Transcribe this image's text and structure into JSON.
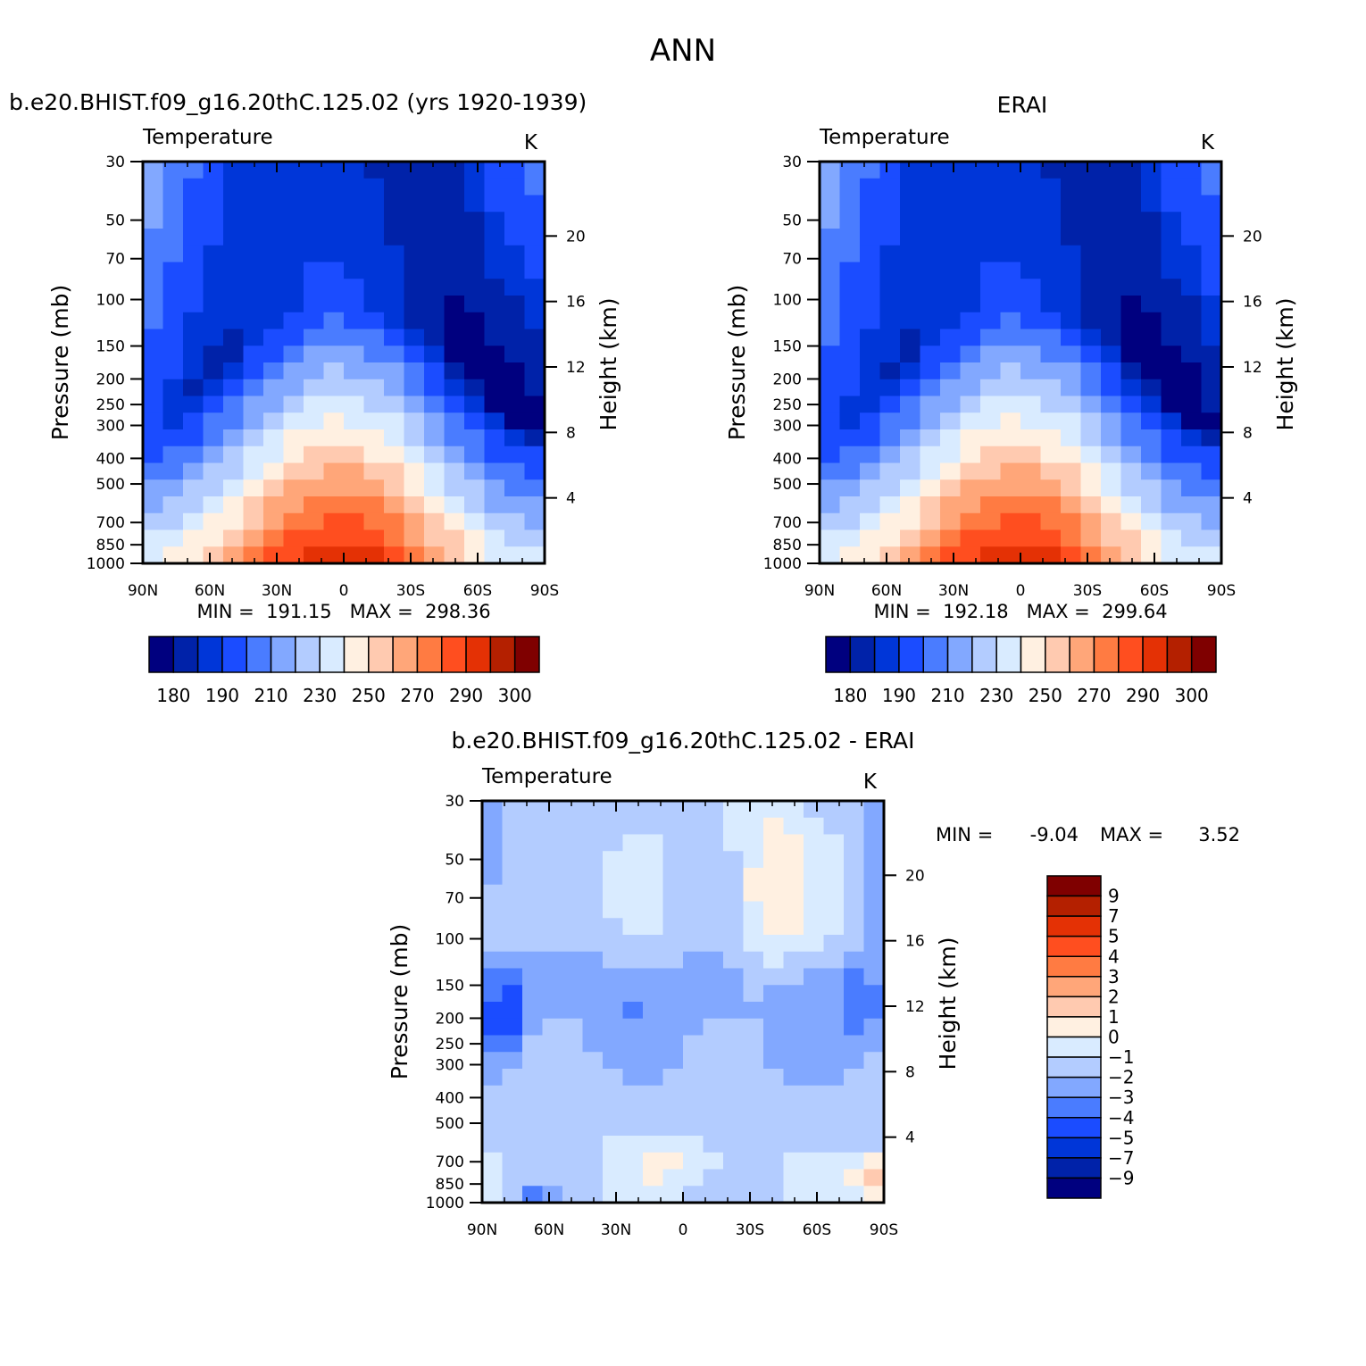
{
  "figure_title": "ANN",
  "chart_data": [
    {
      "id": "model",
      "type": "contour",
      "case_title": "b.e20.BHIST.f09_g16.20thC.125.02 (yrs 1920-1939)",
      "variable": "Temperature",
      "units": "K",
      "ylabel": "Pressure (mb)",
      "ylabel_right": "Height (km)",
      "xticks": [
        "90N",
        "60N",
        "30N",
        "0",
        "30S",
        "60S",
        "90S"
      ],
      "yticks": [
        "30",
        "50",
        "70",
        "100",
        "150",
        "200",
        "250",
        "300",
        "400",
        "500",
        "700",
        "850",
        "1000"
      ],
      "yticks_right": [
        "20",
        "16",
        "12",
        "8",
        "4"
      ],
      "stats_text": "MIN =  191.15   MAX =  298.36",
      "min": 191.15,
      "max": 298.36,
      "colorbar_labels": [
        "180",
        "190",
        "210",
        "230",
        "250",
        "270",
        "290",
        "300"
      ],
      "levels": [
        180,
        185,
        190,
        200,
        210,
        220,
        230,
        240,
        250,
        260,
        270,
        280,
        290,
        295,
        300
      ]
    },
    {
      "id": "obs",
      "type": "contour",
      "case_title": "ERAI",
      "variable": "Temperature",
      "units": "K",
      "ylabel": "Pressure (mb)",
      "ylabel_right": "Height (km)",
      "xticks": [
        "90N",
        "60N",
        "30N",
        "0",
        "30S",
        "60S",
        "90S"
      ],
      "yticks": [
        "30",
        "50",
        "70",
        "100",
        "150",
        "200",
        "250",
        "300",
        "400",
        "500",
        "700",
        "850",
        "1000"
      ],
      "yticks_right": [
        "20",
        "16",
        "12",
        "8",
        "4"
      ],
      "stats_text": "MIN =  192.18   MAX =  299.64",
      "min": 192.18,
      "max": 299.64,
      "colorbar_labels": [
        "180",
        "190",
        "210",
        "230",
        "250",
        "270",
        "290",
        "300"
      ],
      "levels": [
        180,
        185,
        190,
        200,
        210,
        220,
        230,
        240,
        250,
        260,
        270,
        280,
        290,
        295,
        300
      ]
    },
    {
      "id": "diff",
      "type": "contour",
      "case_title": "b.e20.BHIST.f09_g16.20thC.125.02 - ERAI",
      "variable": "Temperature",
      "units": "K",
      "ylabel": "Pressure (mb)",
      "ylabel_right": "Height (km)",
      "xticks": [
        "90N",
        "60N",
        "30N",
        "0",
        "30S",
        "60S",
        "90S"
      ],
      "yticks": [
        "30",
        "50",
        "70",
        "100",
        "150",
        "200",
        "250",
        "300",
        "400",
        "500",
        "700",
        "850",
        "1000"
      ],
      "yticks_right": [
        "20",
        "16",
        "12",
        "8",
        "4"
      ],
      "stats_min_label": "MIN =",
      "stats_min_value": "-9.04",
      "stats_max_label": "MAX =",
      "stats_max_value": "3.52",
      "min": -9.04,
      "max": 3.52,
      "colorbar_labels": [
        "9",
        "7",
        "5",
        "4",
        "3",
        "2",
        "1",
        "0",
        "-1",
        "-2",
        "-3",
        "-4",
        "-5",
        "-7",
        "-9"
      ],
      "levels": [
        -9,
        -7,
        -5,
        -4,
        -3,
        -2,
        -1,
        0,
        1,
        2,
        3,
        4,
        5,
        7,
        9
      ]
    }
  ],
  "colors": {
    "temperature_palette": [
      "#00007f",
      "#0022a9",
      "#0036d8",
      "#1b4cff",
      "#4a7cff",
      "#82a8ff",
      "#b3ccff",
      "#d9ebff",
      "#fff0e1",
      "#ffcab0",
      "#ffa679",
      "#ff7b42",
      "#ff4e1f",
      "#e43105",
      "#b42000",
      "#7f0000"
    ],
    "diff_palette": [
      "#00007f",
      "#0022a9",
      "#0036d8",
      "#1b4cff",
      "#4a7cff",
      "#82a8ff",
      "#b3ccff",
      "#d9ebff",
      "#fff0e1",
      "#ffcab0",
      "#ffa679",
      "#ff7b42",
      "#ff4e1f",
      "#e43105",
      "#b42000",
      "#7f0000"
    ]
  }
}
